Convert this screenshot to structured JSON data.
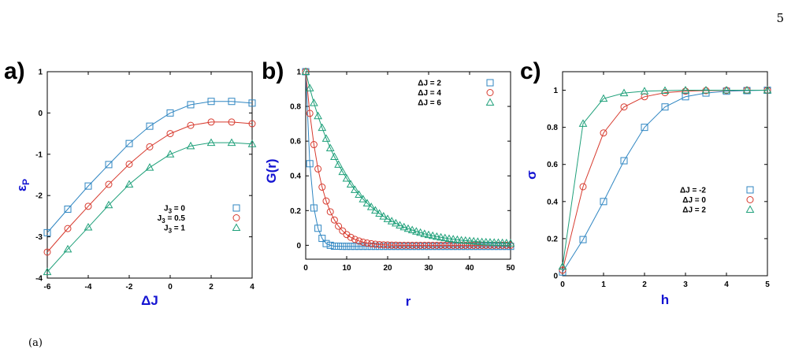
{
  "page_number": "5",
  "footer_fragment": "(a)",
  "colors": {
    "blue": "#2f86c2",
    "red": "#d73a2e",
    "green": "#1fa07a",
    "axis_label": "#1414d2"
  },
  "chart_data": [
    {
      "type": "line",
      "panel": "a)",
      "xlabel": "ΔJ",
      "ylabel": "ε",
      "ylabel_sub": "P",
      "xlim": [
        -6,
        4
      ],
      "ylim": [
        -4,
        1
      ],
      "xticks": [
        -6,
        -4,
        -2,
        0,
        2,
        4
      ],
      "yticks": [
        -4,
        -3,
        -2,
        -1,
        0,
        1
      ],
      "legend_position": "bottom-right",
      "grid": false,
      "series": [
        {
          "name": "J",
          "name_sub": "3",
          "name_suffix": " = 0",
          "marker": "square",
          "color": "#2f86c2",
          "x": [
            -6,
            -5,
            -4,
            -3,
            -2,
            -1,
            0,
            1,
            2,
            3,
            4
          ],
          "y": [
            -2.9,
            -2.33,
            -1.77,
            -1.25,
            -0.74,
            -0.32,
            0.0,
            0.2,
            0.28,
            0.28,
            0.24
          ]
        },
        {
          "name": "J",
          "name_sub": "3",
          "name_suffix": " = 0.5",
          "marker": "circle",
          "color": "#d73a2e",
          "x": [
            -6,
            -5,
            -4,
            -3,
            -2,
            -1,
            0,
            1,
            2,
            3,
            4
          ],
          "y": [
            -3.37,
            -2.8,
            -2.26,
            -1.73,
            -1.24,
            -0.82,
            -0.5,
            -0.3,
            -0.22,
            -0.22,
            -0.26
          ]
        },
        {
          "name": "J",
          "name_sub": "3",
          "name_suffix": " = 1",
          "marker": "triangle",
          "color": "#1fa07a",
          "x": [
            -6,
            -5,
            -4,
            -3,
            -2,
            -1,
            0,
            1,
            2,
            3,
            4
          ],
          "y": [
            -3.85,
            -3.3,
            -2.77,
            -2.23,
            -1.73,
            -1.32,
            -1.0,
            -0.8,
            -0.72,
            -0.72,
            -0.75
          ]
        }
      ]
    },
    {
      "type": "line",
      "panel": "b)",
      "xlabel": "r",
      "ylabel": "G(r)",
      "xlim": [
        0,
        50
      ],
      "ylim": [
        -0.08,
        1.0
      ],
      "xticks": [
        0,
        10,
        20,
        30,
        40,
        50
      ],
      "yticks": [
        0,
        0.2,
        0.4,
        0.6,
        0.8,
        1
      ],
      "legend_position": "top-right",
      "grid": false,
      "series": [
        {
          "name": "ΔJ = 2",
          "marker": "square",
          "color": "#2f86c2",
          "x": [
            0,
            1,
            2,
            3,
            4,
            5,
            6,
            7,
            8,
            9,
            10,
            11,
            12,
            13,
            14,
            15,
            16,
            17,
            18,
            19,
            20,
            21,
            22,
            23,
            24,
            25,
            26,
            27,
            28,
            29,
            30,
            31,
            32,
            33,
            34,
            35,
            36,
            37,
            38,
            39,
            40,
            41,
            42,
            43,
            44,
            45,
            46,
            47,
            48,
            49,
            50
          ],
          "y": [
            1.0,
            0.47,
            0.215,
            0.098,
            0.04,
            0.01,
            0.0,
            -0.005,
            -0.005,
            -0.006,
            -0.006,
            -0.006,
            -0.006,
            -0.006,
            -0.006,
            -0.006,
            -0.006,
            -0.006,
            -0.006,
            -0.006,
            -0.006,
            -0.006,
            -0.006,
            -0.006,
            -0.006,
            -0.006,
            -0.006,
            -0.006,
            -0.006,
            -0.006,
            -0.006,
            -0.006,
            -0.006,
            -0.006,
            -0.006,
            -0.006,
            -0.006,
            -0.006,
            -0.006,
            -0.006,
            -0.006,
            -0.006,
            -0.006,
            -0.006,
            -0.006,
            -0.006,
            -0.006,
            -0.006,
            -0.006,
            -0.006,
            -0.006
          ]
        },
        {
          "name": "ΔJ = 4",
          "marker": "circle",
          "color": "#d73a2e",
          "x": [
            0,
            1,
            2,
            3,
            4,
            5,
            6,
            7,
            8,
            9,
            10,
            11,
            12,
            13,
            14,
            15,
            16,
            17,
            18,
            19,
            20,
            21,
            22,
            23,
            24,
            25,
            26,
            27,
            28,
            29,
            30,
            31,
            32,
            33,
            34,
            35,
            36,
            37,
            38,
            39,
            40,
            41,
            42,
            43,
            44,
            45,
            46,
            47,
            48,
            49,
            50
          ],
          "y": [
            1.0,
            0.76,
            0.58,
            0.44,
            0.335,
            0.255,
            0.193,
            0.146,
            0.11,
            0.083,
            0.062,
            0.046,
            0.034,
            0.025,
            0.018,
            0.013,
            0.009,
            0.006,
            0.004,
            0.003,
            0.002,
            0.001,
            0.001,
            0.0,
            0.0,
            0.0,
            0.0,
            0.0,
            0.0,
            0.0,
            0.0,
            0.0,
            0.0,
            0.0,
            0.0,
            0.0,
            0.0,
            0.0,
            0.0,
            0.0,
            0.0,
            0.0,
            0.0,
            0.0,
            0.0,
            0.0,
            0.0,
            0.0,
            0.0,
            0.0,
            0.0
          ]
        },
        {
          "name": "ΔJ = 6",
          "marker": "triangle",
          "color": "#1fa07a",
          "x": [
            0,
            1,
            2,
            3,
            4,
            5,
            6,
            7,
            8,
            9,
            10,
            11,
            12,
            13,
            14,
            15,
            16,
            17,
            18,
            19,
            20,
            21,
            22,
            23,
            24,
            25,
            26,
            27,
            28,
            29,
            30,
            31,
            32,
            33,
            34,
            35,
            36,
            37,
            38,
            39,
            40,
            41,
            42,
            43,
            44,
            45,
            46,
            47,
            48,
            49,
            50
          ],
          "y": [
            1.0,
            0.905,
            0.82,
            0.745,
            0.677,
            0.615,
            0.56,
            0.51,
            0.465,
            0.423,
            0.385,
            0.351,
            0.32,
            0.292,
            0.266,
            0.242,
            0.221,
            0.201,
            0.183,
            0.167,
            0.152,
            0.139,
            0.127,
            0.115,
            0.105,
            0.096,
            0.088,
            0.08,
            0.073,
            0.066,
            0.06,
            0.055,
            0.05,
            0.046,
            0.042,
            0.038,
            0.035,
            0.032,
            0.029,
            0.027,
            0.025,
            0.023,
            0.021,
            0.019,
            0.018,
            0.017,
            0.016,
            0.015,
            0.014,
            0.013,
            0.012
          ]
        }
      ]
    },
    {
      "type": "line",
      "panel": "c)",
      "xlabel": "h",
      "ylabel": "σ",
      "xlim": [
        0,
        5
      ],
      "ylim": [
        0,
        1.1
      ],
      "xticks": [
        0,
        1,
        2,
        3,
        4,
        5
      ],
      "yticks": [
        0,
        0.2,
        0.4,
        0.6,
        0.8,
        1
      ],
      "legend_position": "center-right",
      "grid": false,
      "series": [
        {
          "name": "ΔJ = -2",
          "marker": "square",
          "color": "#2f86c2",
          "x": [
            0,
            0.5,
            1,
            1.5,
            2,
            2.5,
            3,
            3.5,
            4,
            4.5,
            5
          ],
          "y": [
            0.02,
            0.195,
            0.4,
            0.62,
            0.8,
            0.91,
            0.965,
            0.985,
            0.995,
            0.998,
            1.0
          ]
        },
        {
          "name": "ΔJ = 0",
          "marker": "circle",
          "color": "#d73a2e",
          "x": [
            0,
            0.5,
            1,
            1.5,
            2,
            2.5,
            3,
            3.5,
            4,
            4.5,
            5
          ],
          "y": [
            0.03,
            0.48,
            0.77,
            0.91,
            0.965,
            0.987,
            0.995,
            0.998,
            0.999,
            1.0,
            1.0
          ]
        },
        {
          "name": "ΔJ = 2",
          "marker": "triangle",
          "color": "#1fa07a",
          "x": [
            0,
            0.5,
            1,
            1.5,
            2,
            2.5,
            3,
            3.5,
            4,
            4.5,
            5
          ],
          "y": [
            0.05,
            0.82,
            0.955,
            0.985,
            0.995,
            0.998,
            1.0,
            1.0,
            1.0,
            1.0,
            1.0
          ]
        }
      ]
    }
  ]
}
